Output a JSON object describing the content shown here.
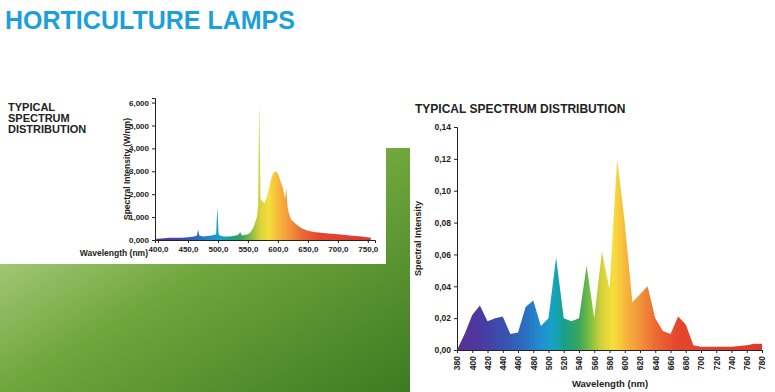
{
  "header": {
    "title": "HORTICULTURE LAMPS"
  },
  "chart_data": [
    {
      "type": "area",
      "title": "TYPICAL SPECTRUM DISTRIBUTION",
      "x_label": "Wavelength (nm)",
      "y_label": "Spectral Intensity (W/nm)",
      "x": [
        397,
        400,
        420,
        440,
        450,
        460,
        465,
        467,
        469,
        475,
        490,
        497,
        499,
        501,
        503,
        510,
        520,
        530,
        535,
        537,
        540,
        550,
        555,
        560,
        565,
        567,
        569,
        571,
        574,
        578,
        583,
        588,
        592,
        596,
        600,
        604,
        608,
        612,
        614,
        616,
        618,
        622,
        630,
        640,
        650,
        660,
        680,
        700,
        720,
        740,
        755
      ],
      "values": [
        0.05,
        0.05,
        0.1,
        0.1,
        0.12,
        0.15,
        0.2,
        0.45,
        0.2,
        0.15,
        0.2,
        0.25,
        1.45,
        0.3,
        0.2,
        0.15,
        0.15,
        0.2,
        0.25,
        0.35,
        0.2,
        0.25,
        0.35,
        0.6,
        1.0,
        1.5,
        6.0,
        1.8,
        1.7,
        1.6,
        2.0,
        2.6,
        2.9,
        3.0,
        2.9,
        2.6,
        2.3,
        1.8,
        2.3,
        1.5,
        1.2,
        0.9,
        0.7,
        0.5,
        0.4,
        0.35,
        0.3,
        0.25,
        0.2,
        0.15,
        0.1
      ],
      "xlim": [
        395,
        762
      ],
      "ylim": [
        0,
        6.2
      ],
      "xticks": [
        {
          "value": 400,
          "label": "400,0"
        },
        {
          "value": 450,
          "label": "450,0"
        },
        {
          "value": 500,
          "label": "500,0"
        },
        {
          "value": 550,
          "label": "550,0"
        },
        {
          "value": 600,
          "label": "600,0"
        },
        {
          "value": 650,
          "label": "650,0"
        },
        {
          "value": 700,
          "label": "700,0"
        },
        {
          "value": 750,
          "label": "750,0"
        }
      ],
      "yticks": [
        {
          "value": 0,
          "label": "0,000"
        },
        {
          "value": 1,
          "label": "1,000"
        },
        {
          "value": 2,
          "label": "2,000"
        },
        {
          "value": 3,
          "label": "3,000"
        },
        {
          "value": 4,
          "label": "4,000"
        },
        {
          "value": 5,
          "label": "5,000"
        },
        {
          "value": 6,
          "label": "6,000"
        }
      ]
    },
    {
      "type": "area",
      "title": "TYPICAL SPECTRUM DISTRIBUTION",
      "x_label": "Wavelength (nm)",
      "y_label": "Spectral Intensity",
      "x": [
        380,
        390,
        400,
        410,
        420,
        430,
        440,
        450,
        460,
        470,
        480,
        490,
        500,
        510,
        520,
        530,
        540,
        550,
        560,
        570,
        580,
        590,
        600,
        610,
        620,
        630,
        640,
        650,
        660,
        670,
        680,
        690,
        700,
        720,
        740,
        760,
        770,
        780
      ],
      "values": [
        0,
        0.01,
        0.022,
        0.028,
        0.018,
        0.02,
        0.021,
        0.01,
        0.011,
        0.027,
        0.031,
        0.015,
        0.02,
        0.058,
        0.02,
        0.018,
        0.02,
        0.053,
        0.02,
        0.062,
        0.038,
        0.12,
        0.08,
        0.03,
        0.035,
        0.04,
        0.02,
        0.012,
        0.01,
        0.021,
        0.016,
        0.003,
        0.002,
        0.002,
        0.002,
        0.003,
        0.004,
        0.004
      ],
      "xlim": [
        380,
        780
      ],
      "ylim": [
        0,
        0.14
      ],
      "xticks": [
        380,
        400,
        420,
        440,
        460,
        480,
        500,
        520,
        540,
        560,
        580,
        600,
        620,
        640,
        660,
        680,
        700,
        720,
        740,
        760,
        780
      ],
      "yticks": [
        {
          "value": 0,
          "label": "0,00"
        },
        {
          "value": 0.02,
          "label": "0,02"
        },
        {
          "value": 0.04,
          "label": "0,04"
        },
        {
          "value": 0.06,
          "label": "0,06"
        },
        {
          "value": 0.08,
          "label": "0,08"
        },
        {
          "value": 0.1,
          "label": "0,10"
        },
        {
          "value": 0.12,
          "label": "0,12"
        },
        {
          "value": 0.14,
          "label": "0,14"
        }
      ]
    }
  ]
}
